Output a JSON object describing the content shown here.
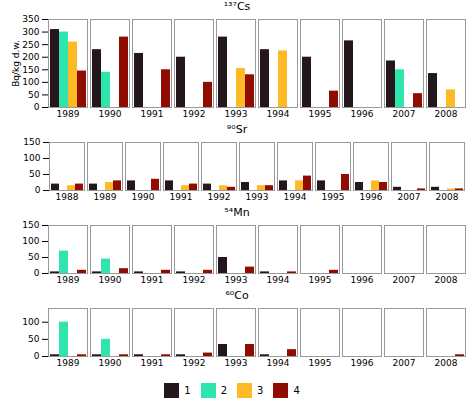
{
  "chart_data": [
    {
      "type": "bar",
      "title": "¹³⁷Cs",
      "ylabel": "Bq/kg d.w.",
      "categories": [
        "1989",
        "1990",
        "1991",
        "1992",
        "1993",
        "1994",
        "1995",
        "1996",
        "2007",
        "2008"
      ],
      "series": [
        {
          "name": "1",
          "values": [
            310,
            230,
            215,
            200,
            280,
            230,
            200,
            265,
            185,
            135
          ]
        },
        {
          "name": "2",
          "values": [
            300,
            140,
            0,
            0,
            0,
            0,
            0,
            0,
            150,
            0
          ]
        },
        {
          "name": "3",
          "values": [
            260,
            0,
            0,
            0,
            155,
            225,
            0,
            0,
            0,
            70
          ]
        },
        {
          "name": "4",
          "values": [
            145,
            280,
            150,
            100,
            130,
            0,
            65,
            0,
            55,
            0
          ]
        }
      ],
      "ylim": [
        0,
        350
      ],
      "yticks": [
        0,
        50,
        100,
        150,
        200,
        250,
        300,
        350
      ]
    },
    {
      "type": "bar",
      "title": "⁹⁰Sr",
      "categories": [
        "1988",
        "1989",
        "1990",
        "1991",
        "1992",
        "1993",
        "1994",
        "1995",
        "1996",
        "2007",
        "2008"
      ],
      "series": [
        {
          "name": "1",
          "values": [
            20,
            20,
            30,
            30,
            20,
            25,
            30,
            30,
            25,
            10,
            10
          ]
        },
        {
          "name": "2",
          "values": [
            0,
            0,
            0,
            0,
            0,
            0,
            0,
            0,
            0,
            0,
            0
          ]
        },
        {
          "name": "3",
          "values": [
            15,
            25,
            0,
            15,
            15,
            15,
            30,
            0,
            30,
            0,
            5
          ]
        },
        {
          "name": "4",
          "values": [
            20,
            30,
            35,
            20,
            10,
            15,
            45,
            50,
            25,
            5,
            5
          ]
        }
      ],
      "ylim": [
        0,
        150
      ],
      "yticks": [
        0,
        50,
        100,
        150
      ]
    },
    {
      "type": "bar",
      "title": "⁵⁴Mn",
      "categories": [
        "1989",
        "1990",
        "1991",
        "1992",
        "1993",
        "1994",
        "1995",
        "1996",
        "2007",
        "2008"
      ],
      "series": [
        {
          "name": "1",
          "values": [
            5,
            5,
            5,
            5,
            50,
            5,
            0,
            0,
            0,
            0
          ]
        },
        {
          "name": "2",
          "values": [
            70,
            45,
            0,
            0,
            0,
            0,
            0,
            0,
            0,
            0
          ]
        },
        {
          "name": "3",
          "values": [
            0,
            0,
            0,
            0,
            0,
            0,
            0,
            0,
            0,
            0
          ]
        },
        {
          "name": "4",
          "values": [
            10,
            15,
            10,
            10,
            20,
            5,
            10,
            0,
            0,
            0
          ]
        }
      ],
      "ylim": [
        0,
        150
      ],
      "yticks": [
        0,
        50,
        100,
        150
      ]
    },
    {
      "type": "bar",
      "title": "⁶⁰Co",
      "legend": "bottom",
      "categories": [
        "1989",
        "1990",
        "1991",
        "1992",
        "1993",
        "1994",
        "1995",
        "1996",
        "2007",
        "2008"
      ],
      "series": [
        {
          "name": "1",
          "values": [
            5,
            5,
            5,
            5,
            35,
            5,
            0,
            0,
            0,
            0
          ]
        },
        {
          "name": "2",
          "values": [
            100,
            50,
            0,
            0,
            0,
            0,
            0,
            0,
            0,
            0
          ]
        },
        {
          "name": "3",
          "values": [
            0,
            0,
            0,
            0,
            0,
            0,
            0,
            0,
            0,
            0
          ]
        },
        {
          "name": "4",
          "values": [
            5,
            5,
            5,
            10,
            35,
            20,
            0,
            0,
            0,
            5
          ]
        }
      ],
      "ylim": [
        0,
        140
      ],
      "yticks": [
        0,
        50,
        100
      ]
    }
  ]
}
